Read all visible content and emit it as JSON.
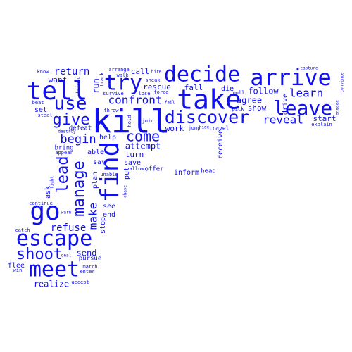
{
  "theme": {
    "word_color": "#1010ee",
    "background": "#ffffff"
  },
  "words": {
    "kill": "kill",
    "take": "take",
    "find": "find",
    "tell": "tell",
    "try": "try",
    "decide": "decide",
    "arrive": "arrive",
    "go": "go",
    "escape": "escape",
    "meet": "meet",
    "leave": "leave",
    "discover": "discover",
    "use": "use",
    "manage": "manage",
    "give": "give",
    "lead": "lead",
    "come": "come",
    "shoot": "shoot",
    "confront": "confront",
    "begin": "begin",
    "learn": "learn",
    "reveal": "reveal",
    "make": "make",
    "return": "return",
    "refuse": "refuse",
    "follow": "follow",
    "agree": "agree",
    "rescue": "rescue",
    "attempt": "attempt",
    "fall": "fall",
    "die": "die",
    "work": "work",
    "realize": "realize",
    "send": "send",
    "show": "show",
    "run": "run",
    "want": "want",
    "call": "call",
    "turn": "turn",
    "save": "save",
    "start": "start",
    "drive": "drive",
    "receive": "receive",
    "inform": "inform",
    "say": "say",
    "help": "help",
    "able": "able",
    "plan": "plan",
    "see": "see",
    "end": "end",
    "put": "put",
    "stop": "stop",
    "set": "set",
    "ask": "ask",
    "defeat": "defeat",
    "bring": "bring",
    "pursue": "pursue",
    "flee": "flee",
    "head": "head",
    "offer": "offer",
    "travel": "travel",
    "join": "join",
    "sneak": "sneak",
    "hold": "hold",
    "jump": "jump",
    "survive": "survive",
    "throw": "throw",
    "lose": "lose",
    "force": "force",
    "pick": "pick",
    "pull": "pull",
    "hire": "hire",
    "arrange": "arrange",
    "walk": "walk",
    "track": "track",
    "friend": "friend",
    "know": "know",
    "beat": "beat",
    "steal": "steal",
    "destroy": "destroy",
    "appear": "appear",
    "fight": "fight",
    "continue": "continue",
    "warn": "warn",
    "catch": "catch",
    "win": "win",
    "match": "match",
    "enter": "enter",
    "accept": "accept",
    "deal": "deal",
    "unable": "unable",
    "allow": "allow",
    "chase": "chase",
    "fail": "fail",
    "hide": "hide",
    "capture": "capture",
    "explain": "explain",
    "engage": "engage",
    "convince": "convince"
  }
}
